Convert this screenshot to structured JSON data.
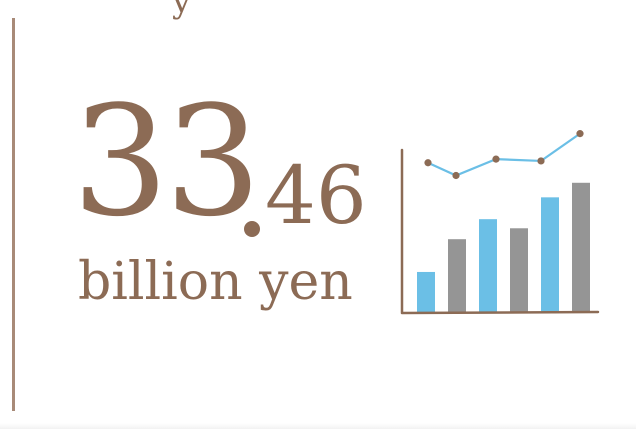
{
  "header": {
    "fragment": "y"
  },
  "figure": {
    "integer": "33",
    "decimal": "46",
    "unit": "billion yen"
  },
  "colors": {
    "brown": "#8c6b55",
    "rule": "#a88a78",
    "blue": "#6bbfe6",
    "gray": "#959595"
  },
  "icon": {
    "name": "bar-line-chart-icon",
    "bars": [
      {
        "level": 0.22,
        "color": "blue"
      },
      {
        "level": 0.4,
        "color": "gray"
      },
      {
        "level": 0.51,
        "color": "blue"
      },
      {
        "level": 0.46,
        "color": "gray"
      },
      {
        "level": 0.63,
        "color": "blue"
      },
      {
        "level": 0.71,
        "color": "gray"
      }
    ],
    "line": [
      0.82,
      0.75,
      0.84,
      0.83,
      0.98
    ]
  }
}
